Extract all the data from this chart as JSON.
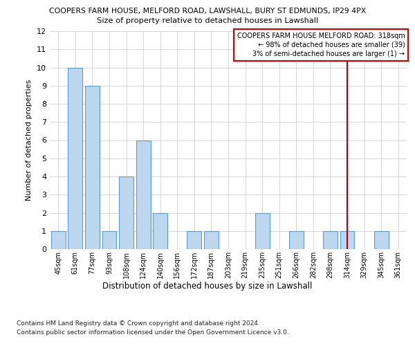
{
  "title_line1": "COOPERS FARM HOUSE, MELFORD ROAD, LAWSHALL, BURY ST EDMUNDS, IP29 4PX",
  "title_line2": "Size of property relative to detached houses in Lawshall",
  "xlabel": "Distribution of detached houses by size in Lawshall",
  "ylabel": "Number of detached properties",
  "categories": [
    "45sqm",
    "61sqm",
    "77sqm",
    "93sqm",
    "108sqm",
    "124sqm",
    "140sqm",
    "156sqm",
    "172sqm",
    "187sqm",
    "203sqm",
    "219sqm",
    "235sqm",
    "251sqm",
    "266sqm",
    "282sqm",
    "298sqm",
    "314sqm",
    "329sqm",
    "345sqm",
    "361sqm"
  ],
  "values": [
    1,
    10,
    9,
    1,
    4,
    6,
    2,
    0,
    1,
    1,
    0,
    0,
    2,
    0,
    1,
    0,
    1,
    1,
    0,
    1,
    0
  ],
  "bar_color": "#BDD7EE",
  "bar_edge_color": "#5B9BD5",
  "grid_color": "#D0D0D0",
  "vline_index": 17,
  "vline_color": "#AA0000",
  "annotation_text": "COOPERS FARM HOUSE MELFORD ROAD: 318sqm\n← 98% of detached houses are smaller (39)\n3% of semi-detached houses are larger (1) →",
  "annotation_box_color": "#CC0000",
  "ylim": [
    0,
    12
  ],
  "yticks": [
    0,
    1,
    2,
    3,
    4,
    5,
    6,
    7,
    8,
    9,
    10,
    11,
    12
  ],
  "footnote1": "Contains HM Land Registry data © Crown copyright and database right 2024.",
  "footnote2": "Contains public sector information licensed under the Open Government Licence v3.0.",
  "bg_color": "#FFFFFF"
}
